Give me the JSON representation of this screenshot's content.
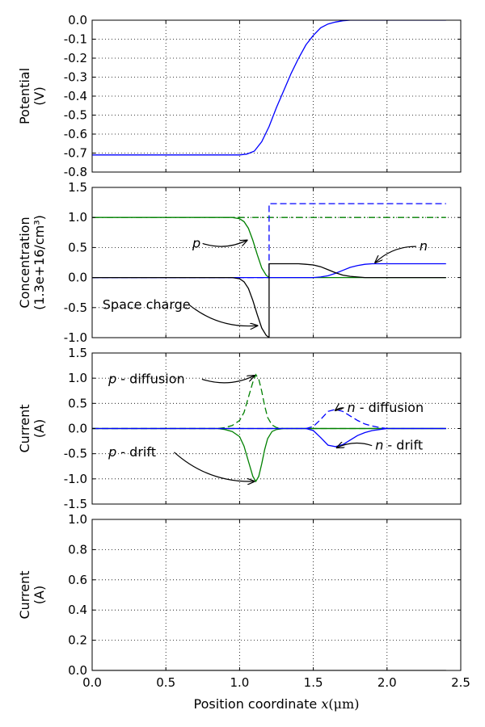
{
  "chart_data": [
    {
      "type": "line",
      "ylabel": [
        "Potential",
        "(V)"
      ],
      "xlim": [
        0,
        2.5
      ],
      "ylim": [
        -0.8,
        0
      ],
      "yticks": [
        "0.0",
        "-0.1",
        "-0.2",
        "-0.3",
        "-0.4",
        "-0.5",
        "-0.6",
        "-0.7",
        "-0.8"
      ],
      "ytick_values": [
        0,
        -0.1,
        -0.2,
        -0.3,
        -0.4,
        -0.5,
        -0.6,
        -0.7,
        -0.8
      ],
      "grid": true,
      "series": [
        {
          "color": "#0000ff",
          "style": "solid",
          "x": [
            0,
            0.9,
            1.0,
            1.05,
            1.1,
            1.15,
            1.2,
            1.25,
            1.3,
            1.35,
            1.4,
            1.45,
            1.5,
            1.55,
            1.6,
            1.65,
            1.7,
            1.75,
            1.8,
            2.4
          ],
          "y": [
            -0.71,
            -0.71,
            -0.71,
            -0.705,
            -0.69,
            -0.64,
            -0.56,
            -0.46,
            -0.37,
            -0.28,
            -0.2,
            -0.13,
            -0.08,
            -0.04,
            -0.02,
            -0.01,
            -0.003,
            0,
            0,
            0
          ]
        }
      ]
    },
    {
      "type": "line",
      "ylabel": [
        "Concentration",
        "(1.3e+16/cm³)"
      ],
      "xlim": [
        0,
        2.5
      ],
      "ylim": [
        -1,
        1.5
      ],
      "yticks": [
        "1.5",
        "1.0",
        "0.5",
        "0.0",
        "-0.5",
        "-1.0"
      ],
      "ytick_values": [
        1.5,
        1.0,
        0.5,
        0.0,
        -0.5,
        -1.0
      ],
      "grid": true,
      "series": [
        {
          "color": "#008000",
          "style": "dashdot",
          "x": [
            0,
            2.4
          ],
          "y": [
            1.0,
            1.0
          ]
        },
        {
          "color": "#0000ff",
          "style": "dashed",
          "x": [
            0,
            1.2,
            1.2,
            2.4
          ],
          "y": [
            0,
            0,
            1.23,
            1.23
          ]
        },
        {
          "color": "#008000",
          "style": "solid",
          "x": [
            0,
            0.95,
            1.0,
            1.03,
            1.06,
            1.09,
            1.12,
            1.15,
            1.18,
            1.2,
            1.5,
            2.4
          ],
          "y": [
            1.0,
            1.0,
            0.98,
            0.93,
            0.82,
            0.62,
            0.38,
            0.16,
            0.04,
            0.0,
            0.0,
            0.0
          ]
        },
        {
          "color": "#0000ff",
          "style": "solid",
          "x": [
            0,
            1.5,
            1.55,
            1.6,
            1.65,
            1.7,
            1.75,
            1.8,
            1.85,
            1.9,
            2.0,
            2.4
          ],
          "y": [
            0,
            0,
            0.01,
            0.03,
            0.07,
            0.12,
            0.17,
            0.2,
            0.22,
            0.23,
            0.23,
            0.23
          ]
        },
        {
          "color": "#000000",
          "style": "solid",
          "x": [
            0,
            0.95,
            1.0,
            1.03,
            1.06,
            1.09,
            1.12,
            1.15,
            1.18,
            1.2,
            1.2,
            1.4,
            1.45,
            1.5,
            1.55,
            1.6,
            1.65,
            1.7,
            1.75,
            1.8,
            1.85,
            1.9,
            2.4
          ],
          "y": [
            0,
            0,
            -0.02,
            -0.07,
            -0.18,
            -0.38,
            -0.62,
            -0.84,
            -0.96,
            -1.0,
            0.23,
            0.23,
            0.22,
            0.21,
            0.18,
            0.13,
            0.08,
            0.04,
            0.02,
            0.01,
            0.0,
            0.0,
            0.0
          ]
        }
      ],
      "annotations": [
        {
          "label": "p",
          "italic": "p",
          "rest": "",
          "text_at": [
            0.68,
            0.5
          ],
          "arrow_to": [
            1.05,
            0.62
          ]
        },
        {
          "label": "n",
          "italic": "n",
          "rest": "",
          "text_at": [
            2.22,
            0.45
          ],
          "arrow_to": [
            1.92,
            0.25
          ]
        },
        {
          "label": "Space charge",
          "italic": "",
          "rest": "Space charge",
          "text_at": [
            0.07,
            -0.52
          ],
          "arrow_to": [
            1.12,
            -0.8
          ]
        }
      ]
    },
    {
      "type": "line",
      "ylabel": [
        "Current",
        "(A)"
      ],
      "xlim": [
        0,
        2.5
      ],
      "ylim": [
        -1.5,
        1.5
      ],
      "yticks": [
        "1.5",
        "1.0",
        "0.5",
        "0.0",
        "-0.5",
        "-1.0",
        "-1.5"
      ],
      "ytick_values": [
        1.5,
        1.0,
        0.5,
        0.0,
        -0.5,
        -1.0,
        -1.5
      ],
      "grid": true,
      "series": [
        {
          "color": "#008000",
          "style": "solid",
          "x": [
            0,
            2.4
          ],
          "y": [
            0,
            0
          ]
        },
        {
          "color": "#008000",
          "style": "dashed",
          "x": [
            0,
            0.85,
            0.9,
            0.95,
            1.0,
            1.03,
            1.06,
            1.09,
            1.11,
            1.13,
            1.15,
            1.17,
            1.19,
            1.22,
            1.25,
            1.3,
            2.4
          ],
          "y": [
            0,
            0,
            0.02,
            0.06,
            0.16,
            0.32,
            0.62,
            0.92,
            1.07,
            0.98,
            0.74,
            0.45,
            0.22,
            0.07,
            0.02,
            0,
            0
          ]
        },
        {
          "color": "#008000",
          "style": "solid",
          "x": [
            0,
            0.85,
            0.9,
            0.95,
            1.0,
            1.03,
            1.06,
            1.09,
            1.11,
            1.13,
            1.15,
            1.17,
            1.19,
            1.22,
            1.25,
            1.3,
            2.4
          ],
          "y": [
            0,
            0,
            -0.02,
            -0.06,
            -0.16,
            -0.35,
            -0.65,
            -0.95,
            -1.05,
            -0.95,
            -0.7,
            -0.42,
            -0.2,
            -0.06,
            -0.02,
            0,
            0
          ]
        },
        {
          "color": "#0000ff",
          "style": "dashed",
          "x": [
            0,
            1.45,
            1.5,
            1.55,
            1.6,
            1.65,
            1.7,
            1.75,
            1.8,
            1.85,
            1.9,
            1.95,
            2.0,
            2.4
          ],
          "y": [
            0,
            0,
            0.04,
            0.18,
            0.34,
            0.38,
            0.34,
            0.25,
            0.16,
            0.09,
            0.05,
            0.02,
            0.0,
            0
          ]
        },
        {
          "color": "#0000ff",
          "style": "solid",
          "x": [
            0,
            1.45,
            1.5,
            1.55,
            1.6,
            1.65,
            1.7,
            1.75,
            1.8,
            1.85,
            1.9,
            1.95,
            2.0,
            2.4
          ],
          "y": [
            0,
            0,
            -0.04,
            -0.18,
            -0.33,
            -0.36,
            -0.32,
            -0.23,
            -0.14,
            -0.08,
            -0.04,
            -0.02,
            0.0,
            0
          ]
        }
      ],
      "annotations": [
        {
          "label": "p - diffusion",
          "italic": "p",
          "rest": " - diffusion",
          "text_at": [
            0.11,
            0.9
          ],
          "arrow_to": [
            1.1,
            1.05
          ]
        },
        {
          "label": "p - drift",
          "italic": "p",
          "rest": " - drift",
          "text_at": [
            0.11,
            -0.55
          ],
          "arrow_to": [
            1.1,
            -1.05
          ]
        },
        {
          "label": "n - diffusion",
          "italic": "n",
          "rest": " - diffusion",
          "text_at": [
            1.73,
            0.33
          ],
          "arrow_to": [
            1.65,
            0.36
          ]
        },
        {
          "label": "n - drift",
          "italic": "n",
          "rest": " - drift",
          "text_at": [
            1.92,
            -0.42
          ],
          "arrow_to": [
            1.66,
            -0.38
          ]
        }
      ]
    },
    {
      "type": "line",
      "ylabel": [
        "Current",
        "(A)"
      ],
      "xlim": [
        0,
        2.5
      ],
      "ylim": [
        0,
        1.0
      ],
      "yticks": [
        "1.0",
        "0.8",
        "0.6",
        "0.4",
        "0.2",
        "0.0"
      ],
      "ytick_values": [
        1.0,
        0.8,
        0.6,
        0.4,
        0.2,
        0.0
      ],
      "xticks": [
        "0.0",
        "0.5",
        "1.0",
        "1.5",
        "2.0",
        "2.5"
      ],
      "xtick_values": [
        0,
        0.5,
        1.0,
        1.5,
        2.0,
        2.5
      ],
      "xlabel": "Position coordinate x(μm)",
      "xlabel_parts": {
        "plain": "Position coordinate ",
        "italic": "x",
        "unit": "(μm)"
      },
      "grid": true,
      "series": [
        {
          "color": "#000000",
          "style": "solid",
          "x": [
            0,
            2.4
          ],
          "y": [
            0.0,
            0.0
          ]
        }
      ]
    }
  ]
}
